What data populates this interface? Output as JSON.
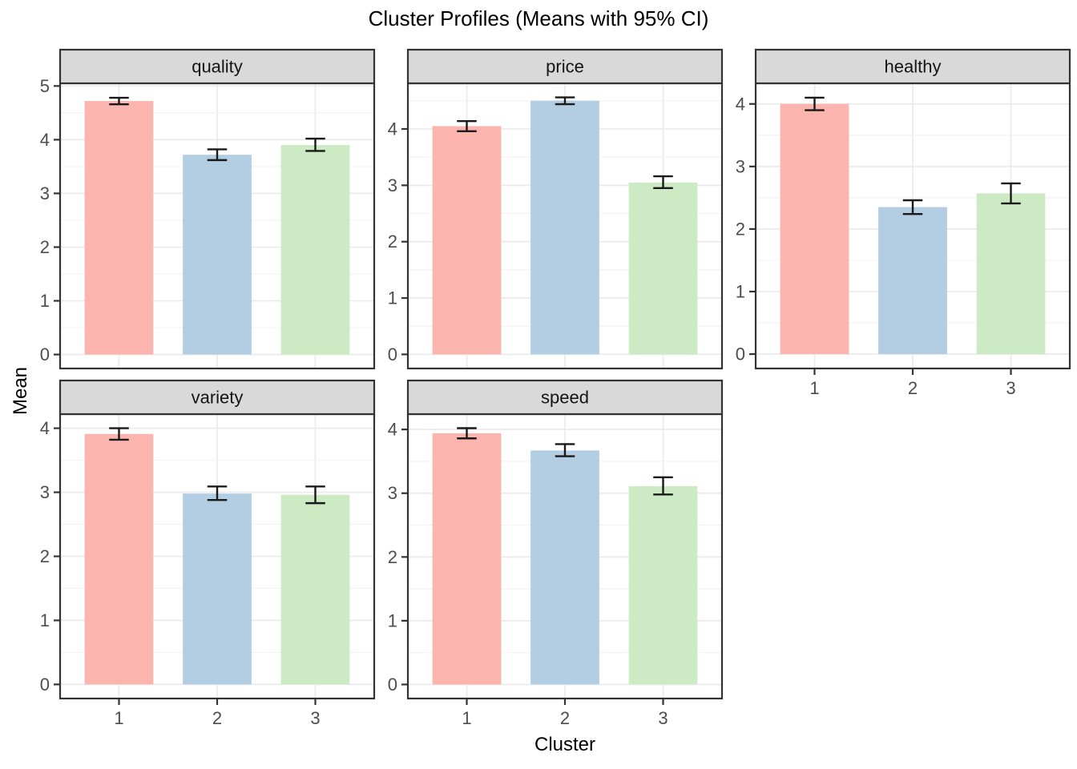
{
  "chart_data": {
    "type": "bar",
    "title": "Cluster Profiles (Means with 95% CI)",
    "xlabel": "Cluster",
    "ylabel": "Mean",
    "categories": [
      "1",
      "2",
      "3"
    ],
    "legend_position": "none",
    "grid": "on",
    "error_bars": "95% confidence intervals",
    "facets": [
      {
        "label": "quality",
        "means": [
          4.72,
          3.72,
          3.9
        ],
        "ci_lower": [
          4.66,
          3.62,
          3.79
        ],
        "ci_upper": [
          4.78,
          3.82,
          4.02
        ],
        "y_ticks": [
          0,
          1,
          2,
          3,
          4,
          5
        ],
        "ylim": [
          -0.26,
          5.05
        ]
      },
      {
        "label": "price",
        "means": [
          4.05,
          4.5,
          3.05
        ],
        "ci_lower": [
          3.96,
          4.44,
          2.95
        ],
        "ci_upper": [
          4.14,
          4.56,
          3.16
        ],
        "y_ticks": [
          0,
          1,
          2,
          3,
          4
        ],
        "ylim": [
          -0.25,
          4.81
        ]
      },
      {
        "label": "healthy",
        "means": [
          4.0,
          2.35,
          2.57
        ],
        "ci_lower": [
          3.9,
          2.24,
          2.41
        ],
        "ci_upper": [
          4.1,
          2.46,
          2.73
        ],
        "y_ticks": [
          0,
          1,
          2,
          3,
          4
        ],
        "ylim": [
          -0.23,
          4.33
        ]
      },
      {
        "label": "variety",
        "means": [
          3.91,
          2.98,
          2.96
        ],
        "ci_lower": [
          3.82,
          2.88,
          2.83
        ],
        "ci_upper": [
          4.0,
          3.09,
          3.09
        ],
        "y_ticks": [
          0,
          1,
          2,
          3,
          4
        ],
        "ylim": [
          -0.22,
          4.22
        ]
      },
      {
        "label": "speed",
        "means": [
          3.94,
          3.67,
          3.11
        ],
        "ci_lower": [
          3.86,
          3.58,
          2.98
        ],
        "ci_upper": [
          4.02,
          3.77,
          3.25
        ],
        "y_ticks": [
          0,
          1,
          2,
          3,
          4
        ],
        "ylim": [
          -0.22,
          4.24
        ]
      }
    ],
    "colors": {
      "cluster_1_fill": "#FBB4AE",
      "cluster_2_fill": "#B3CDE3",
      "cluster_3_fill": "#CCEBC5",
      "strip_bg": "#D9D9D9",
      "panel_bg": "#FFFFFF",
      "panel_border": "#333333",
      "grid_major": "#EBEBEB",
      "grid_minor": "#F3F3F3",
      "axis_text": "#4D4D4D",
      "tick_mark": "#333333",
      "errorbar": "#1A1A1A",
      "strip_text": "#141414",
      "title_text": "#000000"
    }
  }
}
